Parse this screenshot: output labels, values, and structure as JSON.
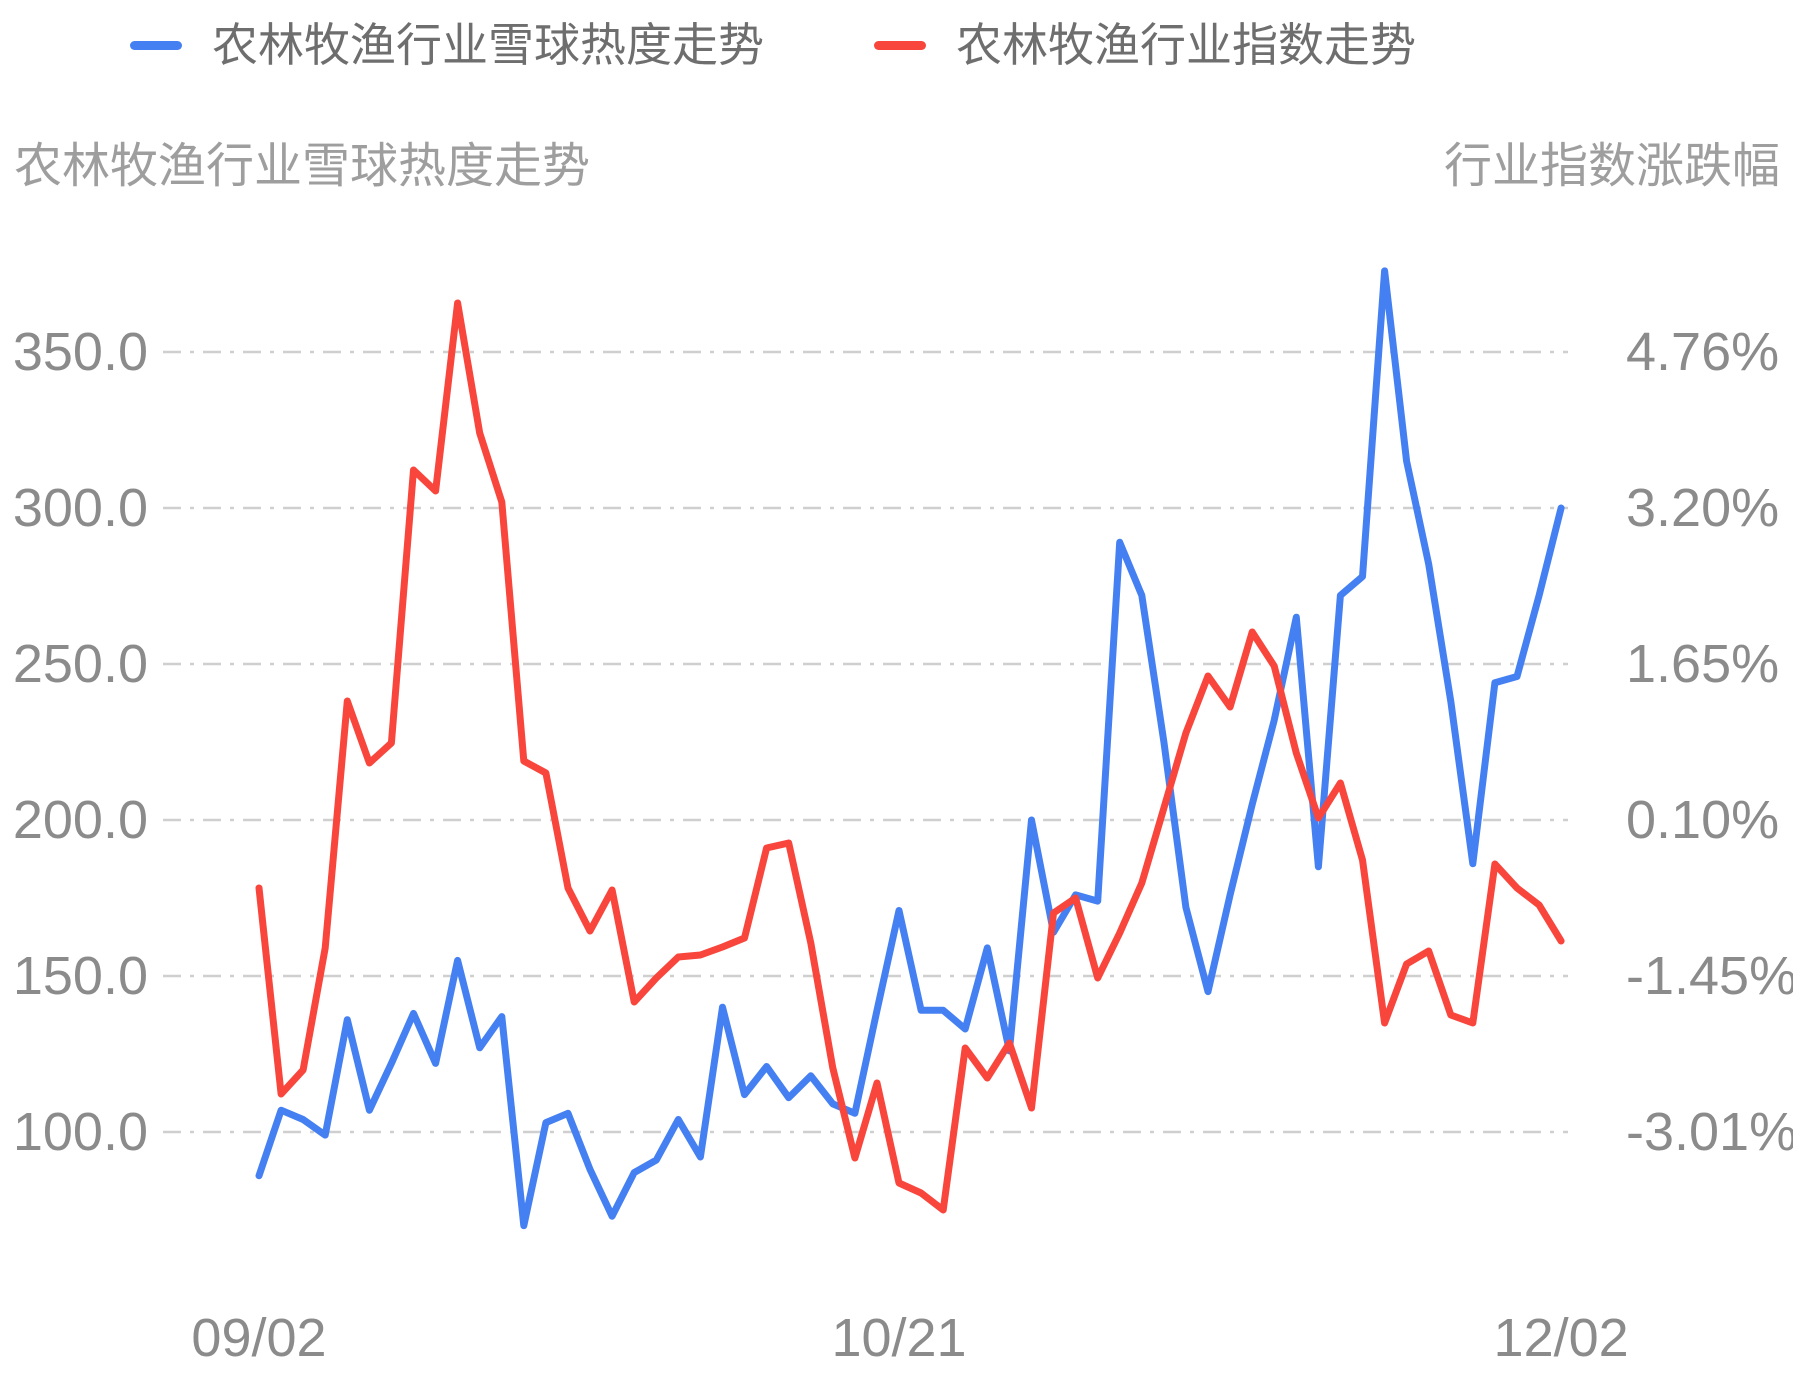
{
  "legend": {
    "items": [
      {
        "label": "农林牧渔行业雪球热度走势",
        "color": "#4580F2"
      },
      {
        "label": "农林牧渔行业指数走势",
        "color": "#F9463D"
      }
    ]
  },
  "titles": {
    "left": "农林牧渔行业雪球热度走势",
    "right": "行业指数涨跌幅"
  },
  "chart_data": {
    "type": "line",
    "n_points": 60,
    "x_tick_labels": [
      {
        "label": "09/02",
        "index": 0
      },
      {
        "label": "10/21",
        "index": 29
      },
      {
        "label": "12/02",
        "index": 59
      }
    ],
    "left_axis": {
      "title": "农林牧渔行业雪球热度走势",
      "ticks": [
        350,
        300,
        250,
        200,
        150,
        100
      ],
      "tick_labels": [
        "350.0",
        "300.0",
        "250.0",
        "200.0",
        "150.0",
        "100.0"
      ]
    },
    "right_axis": {
      "title": "行业指数涨跌幅",
      "ticks": [
        4.76,
        3.2,
        1.65,
        0.1,
        -1.45,
        -3.01
      ],
      "tick_labels": [
        "4.76%",
        "3.20%",
        "1.65%",
        "0.10%",
        "-1.45%",
        "-3.01%"
      ]
    },
    "grid": true,
    "legend_position": "top",
    "series": [
      {
        "name": "农林牧渔行业雪球热度走势",
        "axis": "left",
        "color": "#4580F2",
        "values": [
          86,
          107,
          104,
          99,
          136,
          107,
          122,
          138,
          122,
          155,
          127,
          137,
          70,
          103,
          106,
          88,
          73,
          87,
          91,
          104,
          92,
          140,
          112,
          121,
          111,
          118,
          109,
          106,
          139,
          171,
          139,
          139,
          133,
          159,
          126,
          200,
          164,
          176,
          174,
          289,
          272,
          225,
          172,
          145,
          176,
          205,
          232,
          265,
          185,
          272,
          278,
          376,
          315,
          282,
          238,
          186,
          244,
          246,
          272,
          300
        ]
      },
      {
        "name": "农林牧渔行业指数走势",
        "axis": "right",
        "color": "#F9463D",
        "values": [
          -0.6,
          -2.66,
          -2.42,
          -1.2,
          1.27,
          0.65,
          0.85,
          3.58,
          3.37,
          5.25,
          3.95,
          3.26,
          0.67,
          0.55,
          -0.6,
          -1.03,
          -0.62,
          -1.74,
          -1.5,
          -1.29,
          -1.27,
          -1.19,
          -1.1,
          -0.2,
          -0.15,
          -1.15,
          -2.4,
          -3.3,
          -2.55,
          -3.55,
          -3.65,
          -3.82,
          -2.2,
          -2.5,
          -2.15,
          -2.8,
          -0.85,
          -0.7,
          -1.5,
          -1.05,
          -0.55,
          0.2,
          0.95,
          1.52,
          1.21,
          1.96,
          1.62,
          0.75,
          0.1,
          0.45,
          -0.32,
          -1.95,
          -1.36,
          -1.23,
          -1.87,
          -1.95,
          -0.36,
          -0.6,
          -0.77,
          -1.13
        ]
      }
    ]
  },
  "colors": {
    "grid_line": "#cfcfcf",
    "tick_text": "#8b8b8b",
    "title_text": "#9e9e9e",
    "legend_text": "#6e6e6e"
  }
}
